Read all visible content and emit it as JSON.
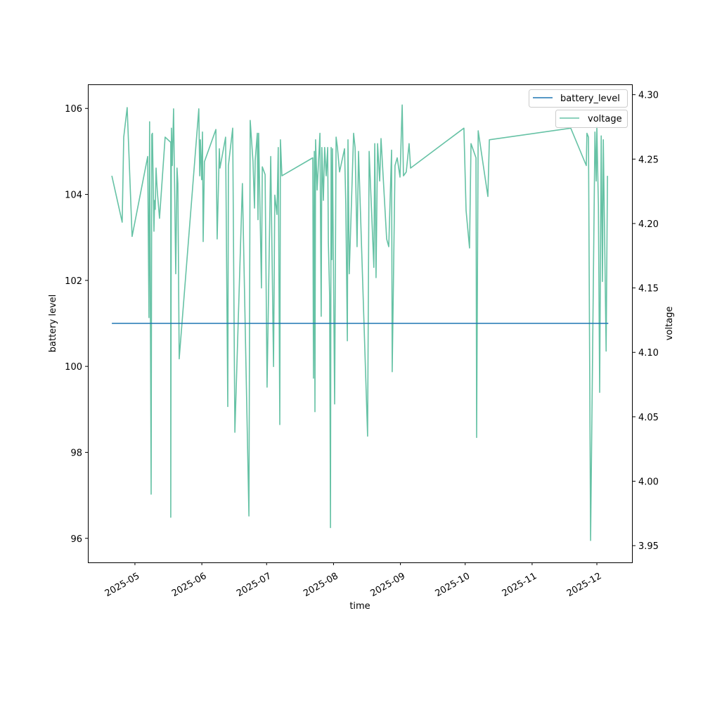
{
  "chart_data": {
    "type": "line",
    "title": "",
    "xlabel": "time",
    "ylabel": "battery level",
    "ylabel_right": "voltage",
    "x_origin": "2025-05-01",
    "x_units": "days since x_origin",
    "xlim": [
      -21.8,
      230.6
    ],
    "ylim": [
      95.44,
      106.56
    ],
    "ylim_right": [
      3.937,
      4.308
    ],
    "x_ticks": [
      {
        "day": 0,
        "label": "2025-05"
      },
      {
        "day": 31,
        "label": "2025-06"
      },
      {
        "day": 61,
        "label": "2025-07"
      },
      {
        "day": 92,
        "label": "2025-08"
      },
      {
        "day": 123,
        "label": "2025-09"
      },
      {
        "day": 153,
        "label": "2025-10"
      },
      {
        "day": 184,
        "label": "2025-11"
      },
      {
        "day": 214,
        "label": "2025-12"
      }
    ],
    "y_ticks": [
      96,
      98,
      100,
      102,
      104,
      106
    ],
    "y_ticks_right": [
      3.95,
      4.0,
      4.05,
      4.1,
      4.15,
      4.2,
      4.25,
      4.3
    ],
    "y_tick_labels_right": [
      "3.95",
      "4.00",
      "4.05",
      "4.10",
      "4.15",
      "4.20",
      "4.25",
      "4.30"
    ],
    "grid": false,
    "legend_placement": "top-right",
    "series": [
      {
        "name": "battery_level",
        "axis": "left",
        "color": "#1f77b4",
        "x": [
          -10.7,
          219.3
        ],
        "y": [
          101,
          101
        ]
      },
      {
        "name": "voltage",
        "axis": "right",
        "color": "#66c2a5",
        "x": [
          -10.7,
          -5.9,
          -5.2,
          -3.6,
          -1.3,
          5.9,
          6.5,
          6.8,
          7.5,
          7.8,
          8.1,
          8.8,
          9.1,
          9.4,
          9.8,
          10.1,
          10.4,
          11.4,
          14.0,
          16.6,
          16.6,
          16.9,
          17.3,
          17.9,
          18.2,
          18.9,
          19.5,
          19.9,
          20.5,
          29.6,
          30.0,
          30.3,
          30.9,
          31.3,
          31.6,
          32.2,
          37.5,
          38.1,
          39.1,
          39.4,
          42.0,
          43.0,
          43.3,
          45.3,
          46.3,
          49.8,
          52.8,
          53.4,
          54.7,
          55.4,
          55.7,
          56.7,
          57.0,
          57.3,
          58.6,
          59.0,
          60.3,
          61.2,
          62.9,
          64.2,
          64.8,
          65.8,
          66.4,
          67.1,
          67.4,
          68.1,
          82.4,
          82.7,
          83.1,
          83.4,
          83.7,
          84.4,
          85.7,
          86.3,
          86.6,
          87.3,
          87.9,
          88.6,
          89.3,
          89.6,
          90.2,
          90.6,
          90.9,
          91.2,
          91.5,
          92.5,
          93.2,
          93.8,
          94.8,
          97.1,
          97.7,
          98.4,
          98.7,
          99.3,
          101.3,
          102.0,
          102.9,
          103.6,
          107.8,
          108.5,
          110.7,
          111.1,
          111.7,
          112.4,
          113.4,
          114.0,
          116.6,
          117.6,
          118.9,
          119.2,
          120.5,
          121.5,
          122.8,
          123.8,
          124.4,
          125.7,
          127.0,
          127.7,
          152.4,
          153.4,
          155.0,
          155.7,
          158.0,
          158.3,
          159.0,
          163.5,
          164.2,
          201.9,
          209.1,
          209.4,
          210.1,
          211.1,
          213.1,
          213.7,
          214.0,
          214.7,
          215.3,
          216.0,
          216.6,
          217.0,
          218.3,
          218.9
        ],
        "y": [
          4.237,
          4.201,
          4.267,
          4.29,
          4.19,
          4.252,
          4.127,
          4.279,
          3.99,
          4.269,
          4.27,
          4.194,
          4.218,
          4.211,
          4.243,
          4.233,
          4.224,
          4.204,
          4.267,
          4.263,
          3.972,
          4.274,
          4.245,
          4.289,
          4.251,
          4.161,
          4.243,
          4.231,
          4.095,
          4.289,
          4.237,
          4.265,
          4.234,
          4.271,
          4.186,
          4.248,
          4.273,
          4.188,
          4.258,
          4.243,
          4.267,
          4.058,
          4.245,
          4.274,
          4.038,
          4.231,
          3.973,
          4.28,
          4.248,
          4.212,
          4.249,
          4.27,
          4.203,
          4.27,
          4.15,
          4.244,
          4.238,
          4.073,
          4.252,
          4.089,
          4.222,
          4.207,
          4.259,
          4.044,
          4.265,
          4.237,
          4.251,
          4.08,
          4.256,
          4.054,
          4.265,
          4.226,
          4.27,
          4.128,
          4.259,
          4.218,
          4.259,
          4.237,
          4.259,
          4.185,
          4.144,
          3.964,
          4.259,
          4.172,
          4.258,
          4.06,
          4.267,
          4.259,
          4.24,
          4.258,
          4.215,
          4.109,
          4.265,
          4.161,
          4.27,
          4.259,
          4.182,
          4.256,
          4.035,
          4.256,
          4.166,
          4.262,
          4.158,
          4.262,
          4.233,
          4.266,
          4.188,
          4.182,
          4.257,
          4.085,
          4.245,
          4.251,
          4.236,
          4.292,
          4.237,
          4.24,
          4.262,
          4.243,
          4.274,
          4.21,
          4.181,
          4.262,
          4.251,
          4.034,
          4.272,
          4.221,
          4.265,
          4.274,
          4.245,
          4.27,
          4.267,
          3.954,
          4.271,
          4.233,
          4.275,
          4.214,
          4.069,
          4.268,
          4.155,
          4.265,
          4.101,
          4.237
        ]
      }
    ]
  }
}
